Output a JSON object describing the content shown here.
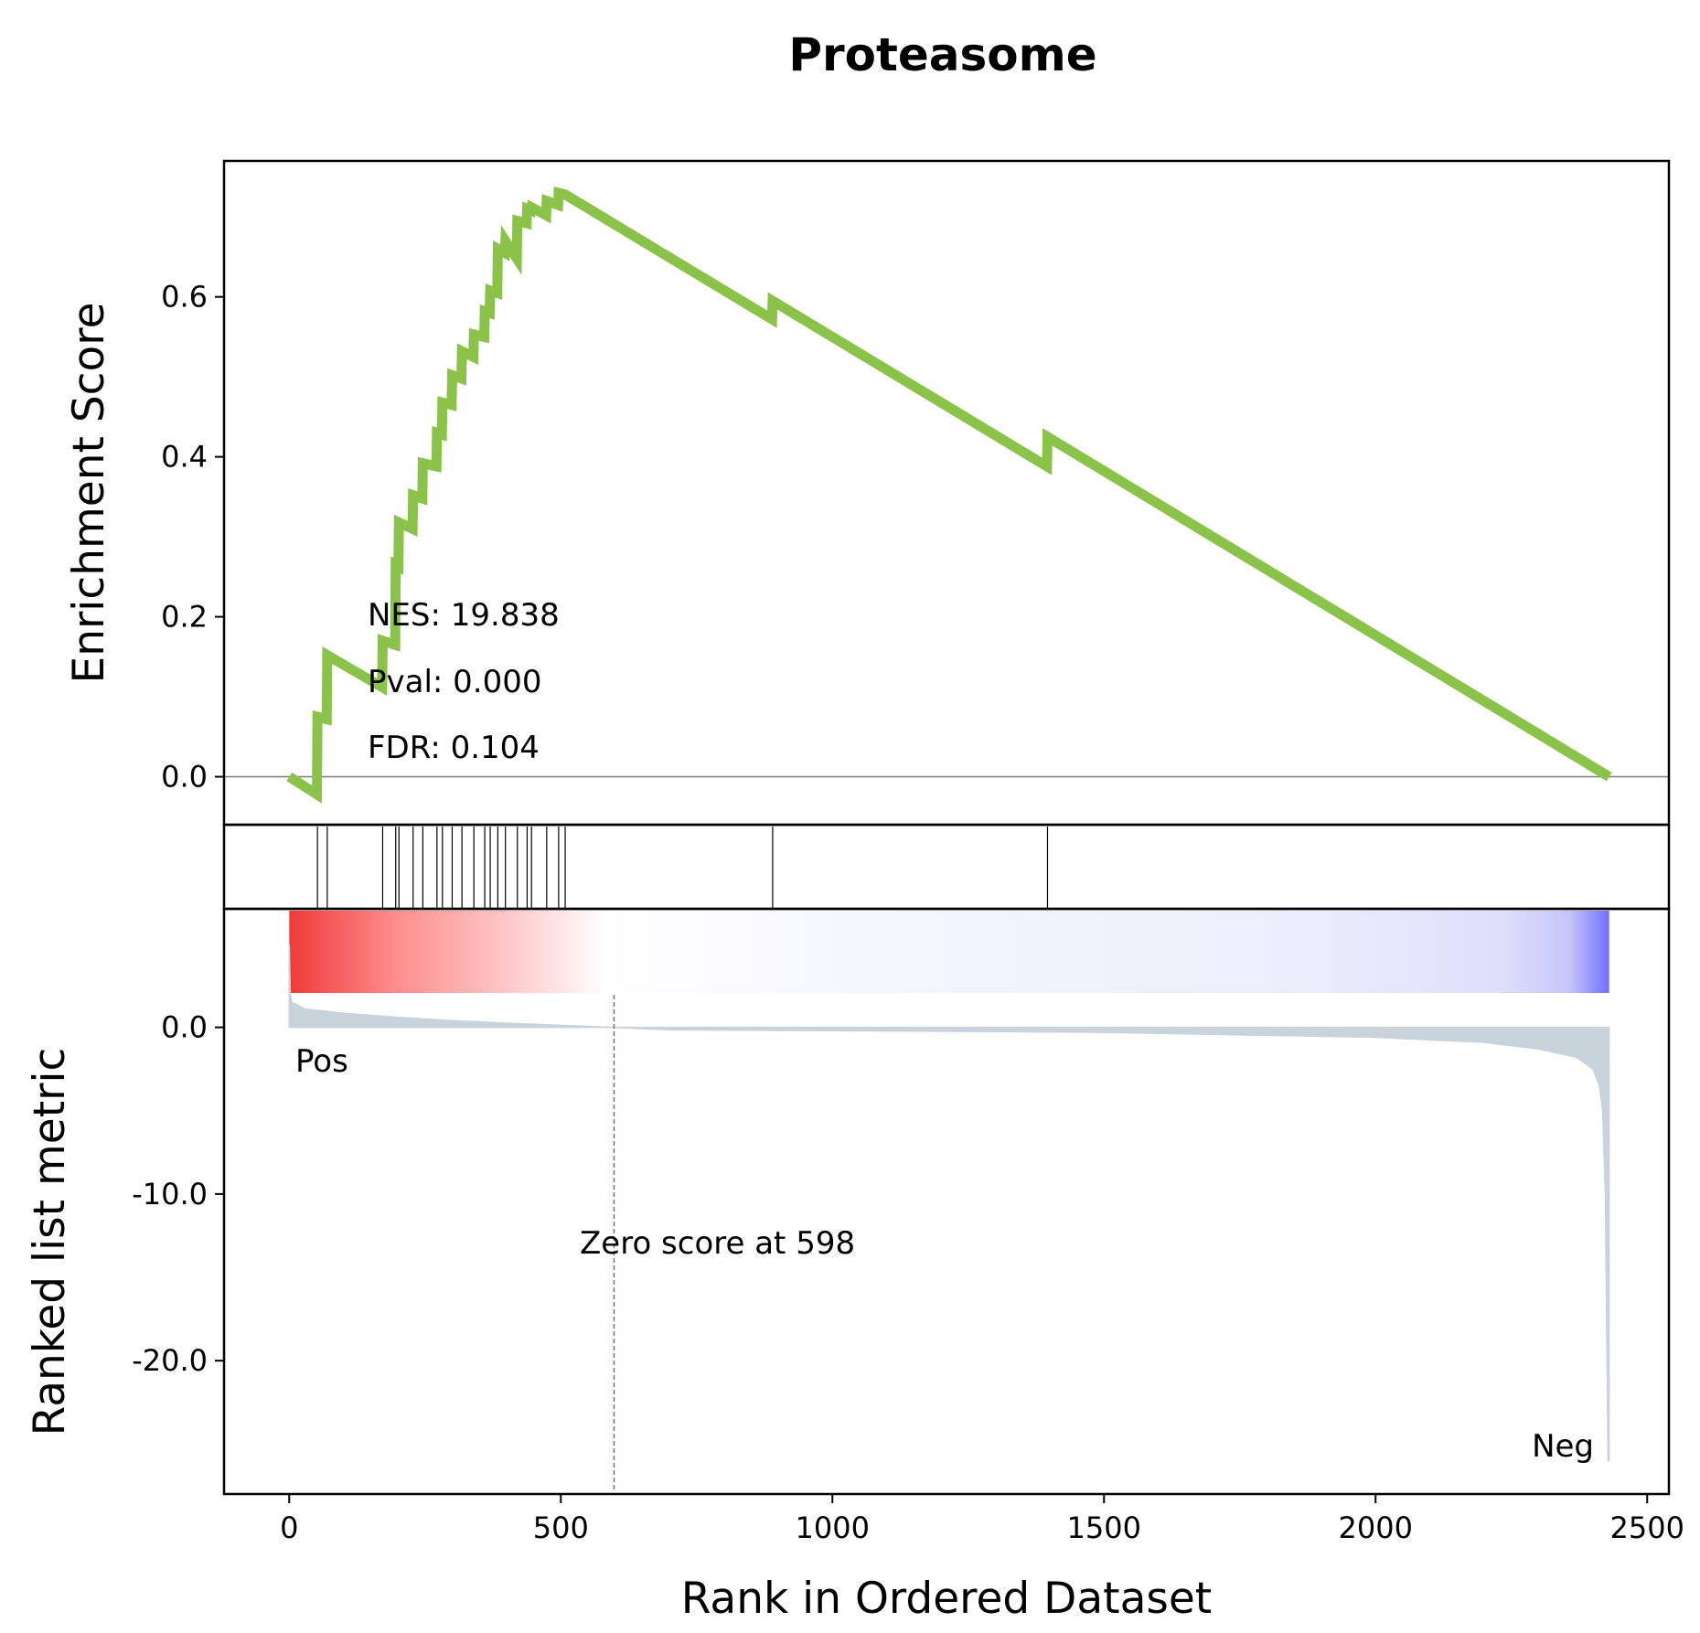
{
  "chart_data": {
    "type": "line",
    "title": "Proteasome",
    "xlabel": "Rank in Ordered Dataset",
    "xlim": [
      -120,
      2540
    ],
    "x_ticks": [
      0,
      500,
      1000,
      1500,
      2000,
      2500
    ],
    "x_tick_labels": [
      "0",
      "500",
      "1000",
      "1500",
      "2000",
      "2500"
    ],
    "enrichment_panel": {
      "ylabel": "Enrichment Score",
      "ylim": [
        -0.06,
        0.77
      ],
      "y_ticks": [
        0.0,
        0.2,
        0.4,
        0.6
      ],
      "y_tick_labels": [
        "0.0",
        "0.2",
        "0.4",
        "0.6"
      ],
      "line_color": "#8bc34a",
      "zero_line": 0,
      "hit_ranks": [
        52,
        70,
        172,
        196,
        202,
        228,
        246,
        272,
        282,
        300,
        318,
        340,
        360,
        370,
        384,
        398,
        420,
        438,
        446,
        474,
        496,
        508,
        890,
        1396
      ],
      "running_es": [
        [
          0,
          0.0
        ],
        [
          51,
          -0.022
        ],
        [
          52,
          0.075
        ],
        [
          69,
          0.072
        ],
        [
          70,
          0.152
        ],
        [
          171,
          0.112
        ],
        [
          172,
          0.17
        ],
        [
          195,
          0.165
        ],
        [
          196,
          0.265
        ],
        [
          201,
          0.263
        ],
        [
          202,
          0.318
        ],
        [
          227,
          0.31
        ],
        [
          228,
          0.352
        ],
        [
          245,
          0.348
        ],
        [
          246,
          0.392
        ],
        [
          271,
          0.388
        ],
        [
          272,
          0.43
        ],
        [
          281,
          0.428
        ],
        [
          282,
          0.468
        ],
        [
          299,
          0.465
        ],
        [
          300,
          0.502
        ],
        [
          317,
          0.498
        ],
        [
          318,
          0.532
        ],
        [
          339,
          0.525
        ],
        [
          340,
          0.553
        ],
        [
          359,
          0.55
        ],
        [
          360,
          0.582
        ],
        [
          369,
          0.58
        ],
        [
          370,
          0.608
        ],
        [
          383,
          0.605
        ],
        [
          384,
          0.66
        ],
        [
          397,
          0.655
        ],
        [
          398,
          0.67
        ],
        [
          419,
          0.648
        ],
        [
          420,
          0.695
        ],
        [
          437,
          0.692
        ],
        [
          438,
          0.71
        ],
        [
          445,
          0.708
        ],
        [
          446,
          0.712
        ],
        [
          473,
          0.702
        ],
        [
          474,
          0.72
        ],
        [
          495,
          0.715
        ],
        [
          496,
          0.73
        ],
        [
          508,
          0.728
        ],
        [
          889,
          0.572
        ],
        [
          890,
          0.595
        ],
        [
          1395,
          0.388
        ],
        [
          1396,
          0.425
        ],
        [
          2430,
          0.0
        ]
      ],
      "stats": {
        "nes": "NES: 19.838",
        "pval": "Pval: 0.000",
        "fdr": "FDR: 0.104"
      }
    },
    "heatmap_bar": {
      "type": "heatmap",
      "positive_color": "#ff0000",
      "neutral_color": "#ffffff",
      "negative_color": "#0000ff"
    },
    "ranked_metric_panel": {
      "ylabel": "Ranked list metric",
      "ylim": [
        -28.0,
        7.0
      ],
      "y_ticks": [
        0.0,
        -10.0,
        -20.0
      ],
      "y_tick_labels": [
        "0.0",
        "-10.0",
        "-20.0"
      ],
      "fill_color": "#c9d3db",
      "zero_cross_rank": 598,
      "zero_score_label": "Zero score at 598",
      "pos_label": "Pos",
      "neg_label": "Neg",
      "pos_color": "#ff0000",
      "neg_color": "#0000ff",
      "metric_curve": [
        [
          0,
          5.0
        ],
        [
          2,
          2.0
        ],
        [
          5,
          1.5
        ],
        [
          30,
          1.1
        ],
        [
          100,
          0.85
        ],
        [
          200,
          0.6
        ],
        [
          300,
          0.4
        ],
        [
          400,
          0.25
        ],
        [
          500,
          0.12
        ],
        [
          598,
          0.0
        ],
        [
          700,
          -0.15
        ],
        [
          1000,
          -0.2
        ],
        [
          1500,
          -0.3
        ],
        [
          2000,
          -0.6
        ],
        [
          2200,
          -0.9
        ],
        [
          2300,
          -1.3
        ],
        [
          2370,
          -1.8
        ],
        [
          2400,
          -2.5
        ],
        [
          2412,
          -3.5
        ],
        [
          2418,
          -5.0
        ],
        [
          2423,
          -10.0
        ],
        [
          2426,
          -20.0
        ],
        [
          2428,
          -26.0
        ],
        [
          2430,
          -26.0
        ]
      ]
    }
  }
}
